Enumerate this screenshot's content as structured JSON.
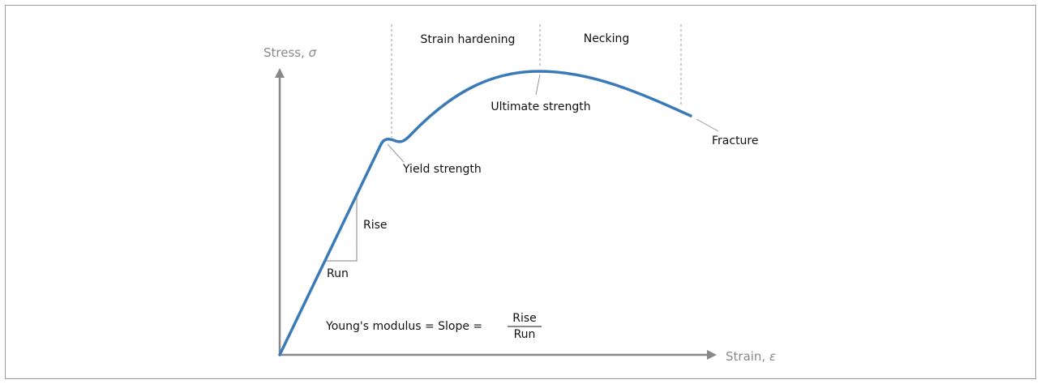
{
  "axes": {
    "y": {
      "label": "Stress,",
      "symbol": "σ"
    },
    "x": {
      "label": "Strain,",
      "symbol": "ε"
    }
  },
  "regions": [
    "Strain hardening",
    "Necking"
  ],
  "points": {
    "yield": "Yield strength",
    "ultimate": "Ultimate strength",
    "fracture": "Fracture"
  },
  "slope": {
    "rise": "Rise",
    "run": "Run"
  },
  "formula": {
    "text": "Young's modulus = Slope =",
    "numerator": "Rise",
    "denominator": "Run"
  }
}
